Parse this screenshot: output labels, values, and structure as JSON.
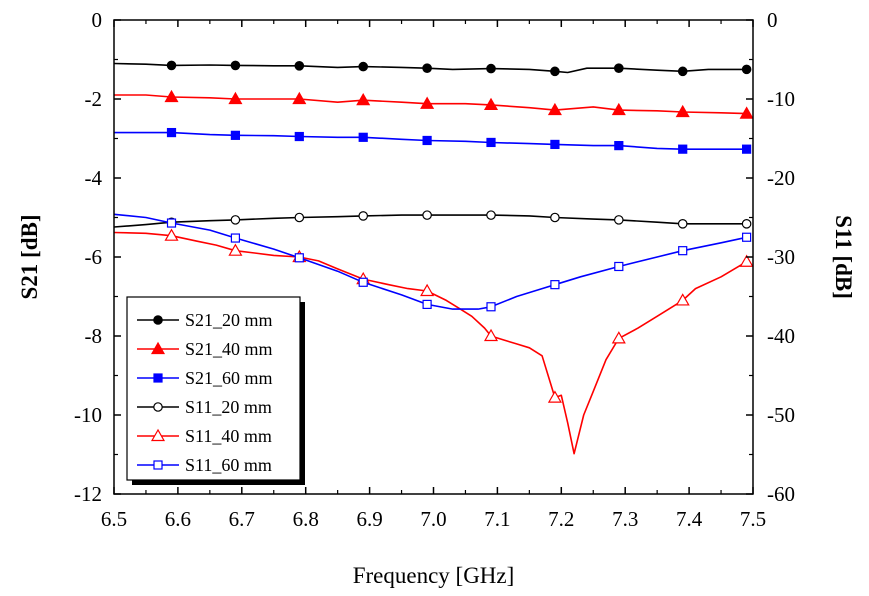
{
  "chart_data": {
    "type": "line",
    "xlabel": "Frequency [GHz]",
    "ylabel_left": "S21 [dB]",
    "ylabel_right": "S11 [dB]",
    "xlim": [
      6.5,
      7.5
    ],
    "ylim_left": [
      -12,
      0
    ],
    "ylim_right": [
      -60,
      0
    ],
    "x_ticks": [
      "6.5",
      "6.6",
      "6.7",
      "6.8",
      "6.9",
      "7.0",
      "7.1",
      "7.2",
      "7.3",
      "7.4",
      "7.5"
    ],
    "y_left_ticks": [
      "0",
      "-2",
      "-4",
      "-6",
      "-8",
      "-10",
      "-12"
    ],
    "y_right_ticks": [
      "0",
      "-10",
      "-20",
      "-30",
      "-40",
      "-50",
      "-60"
    ],
    "grid": false,
    "legend_position": "bottom-left",
    "series": [
      {
        "name": "S21_20 mm",
        "axis": "left",
        "color": "#000000",
        "marker": "circle-filled",
        "x": [
          6.5,
          6.55,
          6.59,
          6.65,
          6.69,
          6.75,
          6.79,
          6.85,
          6.89,
          6.95,
          6.99,
          7.03,
          7.09,
          7.15,
          7.19,
          7.21,
          7.24,
          7.29,
          7.35,
          7.39,
          7.43,
          7.49
        ],
        "values": [
          -1.1,
          -1.12,
          -1.15,
          -1.14,
          -1.15,
          -1.16,
          -1.16,
          -1.2,
          -1.18,
          -1.2,
          -1.22,
          -1.25,
          -1.23,
          -1.25,
          -1.3,
          -1.33,
          -1.22,
          -1.22,
          -1.27,
          -1.3,
          -1.25,
          -1.25
        ]
      },
      {
        "name": "S21_40 mm",
        "axis": "left",
        "color": "#ff0000",
        "marker": "triangle-filled",
        "x": [
          6.5,
          6.55,
          6.59,
          6.65,
          6.69,
          6.75,
          6.79,
          6.85,
          6.89,
          6.95,
          6.99,
          7.05,
          7.09,
          7.15,
          7.19,
          7.25,
          7.29,
          7.35,
          7.39,
          7.45,
          7.49
        ],
        "values": [
          -1.9,
          -1.9,
          -1.95,
          -1.97,
          -2.0,
          -2.0,
          -2.0,
          -2.08,
          -2.03,
          -2.08,
          -2.12,
          -2.12,
          -2.15,
          -2.22,
          -2.28,
          -2.2,
          -2.28,
          -2.3,
          -2.33,
          -2.35,
          -2.37
        ]
      },
      {
        "name": "S21_60 mm",
        "axis": "left",
        "color": "#0000ff",
        "marker": "square-filled",
        "x": [
          6.5,
          6.55,
          6.59,
          6.65,
          6.69,
          6.75,
          6.79,
          6.85,
          6.89,
          6.95,
          6.99,
          7.05,
          7.09,
          7.15,
          7.19,
          7.25,
          7.29,
          7.35,
          7.39,
          7.45,
          7.49
        ],
        "values": [
          -2.85,
          -2.85,
          -2.85,
          -2.9,
          -2.92,
          -2.93,
          -2.95,
          -2.97,
          -2.97,
          -3.02,
          -3.05,
          -3.07,
          -3.1,
          -3.13,
          -3.15,
          -3.18,
          -3.18,
          -3.25,
          -3.27,
          -3.27,
          -3.27
        ]
      },
      {
        "name": "S11_20 mm",
        "axis": "right",
        "color": "#000000",
        "marker": "circle-open",
        "x": [
          6.5,
          6.55,
          6.59,
          6.65,
          6.69,
          6.75,
          6.79,
          6.85,
          6.89,
          6.95,
          6.99,
          7.05,
          7.09,
          7.15,
          7.19,
          7.25,
          7.29,
          7.35,
          7.39,
          7.45,
          7.49
        ],
        "values": [
          -26.2,
          -25.9,
          -25.6,
          -25.4,
          -25.3,
          -25.1,
          -25.0,
          -24.9,
          -24.8,
          -24.7,
          -24.7,
          -24.7,
          -24.7,
          -24.8,
          -25.0,
          -25.2,
          -25.3,
          -25.6,
          -25.8,
          -25.8,
          -25.8
        ]
      },
      {
        "name": "S11_40 mm",
        "axis": "right",
        "color": "#ff0000",
        "marker": "triangle-open",
        "x": [
          6.5,
          6.55,
          6.59,
          6.63,
          6.66,
          6.69,
          6.72,
          6.75,
          6.79,
          6.82,
          6.85,
          6.89,
          6.93,
          6.96,
          6.99,
          7.02,
          7.04,
          7.06,
          7.08,
          7.09,
          7.11,
          7.13,
          7.15,
          7.17,
          7.19,
          7.2,
          7.21,
          7.22,
          7.235,
          7.25,
          7.27,
          7.29,
          7.32,
          7.35,
          7.39,
          7.41,
          7.45,
          7.49
        ],
        "values": [
          -26.9,
          -27.0,
          -27.3,
          -28.0,
          -28.5,
          -29.2,
          -29.5,
          -29.8,
          -30.0,
          -30.5,
          -31.5,
          -32.8,
          -33.5,
          -34.0,
          -34.3,
          -35.5,
          -36.5,
          -37.5,
          -39.0,
          -40.0,
          -40.5,
          -41.0,
          -41.5,
          -42.5,
          -47.8,
          -47.5,
          -51.0,
          -54.9,
          -50.0,
          -47.0,
          -43.0,
          -40.3,
          -39.0,
          -37.5,
          -35.5,
          -34.0,
          -32.5,
          -30.6
        ]
      },
      {
        "name": "S11_60 mm",
        "axis": "right",
        "color": "#0000ff",
        "marker": "square-open",
        "x": [
          6.5,
          6.55,
          6.59,
          6.65,
          6.69,
          6.75,
          6.79,
          6.85,
          6.89,
          6.95,
          6.99,
          7.03,
          7.07,
          7.09,
          7.13,
          7.17,
          7.19,
          7.23,
          7.29,
          7.35,
          7.39,
          7.45,
          7.49
        ],
        "values": [
          -24.6,
          -25.0,
          -25.7,
          -26.6,
          -27.6,
          -29.0,
          -30.1,
          -31.8,
          -33.2,
          -34.8,
          -36.0,
          -36.6,
          -36.6,
          -36.3,
          -35.0,
          -34.0,
          -33.5,
          -32.5,
          -31.2,
          -30.0,
          -29.2,
          -28.2,
          -27.5
        ]
      }
    ]
  }
}
